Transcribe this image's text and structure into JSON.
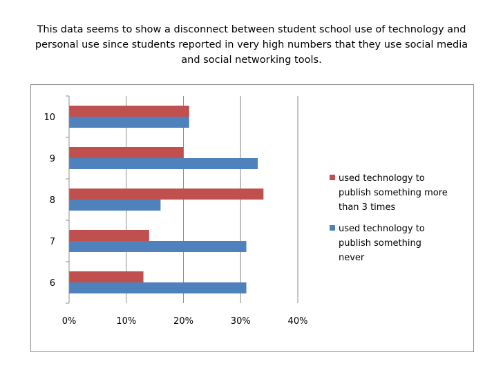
{
  "caption": "This data seems to show a disconnect between student school use of technology and personal use since students reported in very high numbers that they use social media and social networking tools.",
  "chart_data": {
    "type": "bar",
    "orientation": "horizontal",
    "categories": [
      "6",
      "7",
      "8",
      "9",
      "10"
    ],
    "series": [
      {
        "name": "used technology to publish something more than 3 times",
        "color": "#c0504d",
        "values": [
          0.13,
          0.14,
          0.34,
          0.2,
          0.21
        ]
      },
      {
        "name": "used technology to publish something never",
        "color": "#4f81bd",
        "values": [
          0.31,
          0.31,
          0.16,
          0.33,
          0.21
        ]
      }
    ],
    "x_ticks": [
      "0%",
      "10%",
      "20%",
      "30%",
      "40%"
    ],
    "xlim": [
      0,
      0.4
    ],
    "grid": true,
    "legend_position": "right"
  }
}
